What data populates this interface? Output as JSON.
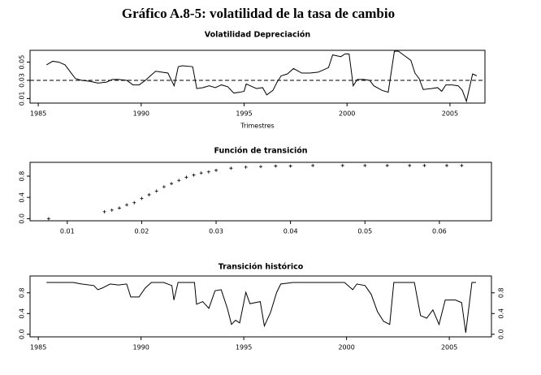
{
  "title": "Gráfico A.8-5: volatilidad de la tasa de cambio",
  "chart_data": [
    {
      "type": "line",
      "title": "Volatilidad Depreciación",
      "x_label": "Trimestres",
      "x": [
        1985.4,
        1985.7,
        1986.0,
        1986.3,
        1986.6,
        1986.8,
        1987.1,
        1987.5,
        1987.9,
        1988.3,
        1988.6,
        1988.9,
        1989.3,
        1989.6,
        1989.9,
        1990.2,
        1990.5,
        1990.7,
        1991.0,
        1991.3,
        1991.6,
        1991.8,
        1992.0,
        1992.5,
        1992.7,
        1993.0,
        1993.3,
        1993.6,
        1993.9,
        1994.2,
        1994.5,
        1994.8,
        1995.0,
        1995.1,
        1995.3,
        1995.6,
        1995.9,
        1996.1,
        1996.4,
        1996.6,
        1996.8,
        1997.1,
        1997.4,
        1997.8,
        1998.2,
        1998.6,
        1998.8,
        1999.1,
        1999.3,
        1999.7,
        1999.9,
        2000.1,
        2000.3,
        2000.5,
        2000.8,
        2001.1,
        2001.3,
        2001.7,
        2002.0,
        2002.3,
        2002.5,
        2002.8,
        2003.1,
        2003.3,
        2003.5,
        2003.7,
        2004.1,
        2004.4,
        2004.6,
        2004.8,
        2005.1,
        2005.4,
        2005.6,
        2005.8,
        2006.1,
        2006.3
      ],
      "values": [
        0.047,
        0.051,
        0.05,
        0.047,
        0.038,
        0.032,
        0.03,
        0.029,
        0.027,
        0.028,
        0.031,
        0.031,
        0.03,
        0.025,
        0.025,
        0.03,
        0.036,
        0.04,
        0.039,
        0.038,
        0.024,
        0.045,
        0.046,
        0.045,
        0.021,
        0.022,
        0.024,
        0.022,
        0.025,
        0.023,
        0.016,
        0.017,
        0.018,
        0.026,
        0.024,
        0.021,
        0.022,
        0.014,
        0.019,
        0.028,
        0.035,
        0.037,
        0.043,
        0.038,
        0.038,
        0.039,
        0.041,
        0.044,
        0.058,
        0.056,
        0.059,
        0.059,
        0.024,
        0.031,
        0.031,
        0.03,
        0.024,
        0.019,
        0.017,
        0.062,
        0.062,
        0.057,
        0.052,
        0.038,
        0.032,
        0.02,
        0.021,
        0.022,
        0.018,
        0.025,
        0.025,
        0.024,
        0.019,
        0.007,
        0.037,
        0.035
      ],
      "color": "#000000",
      "reference_line": 0.03,
      "xlim": [
        1984.6,
        2006.7
      ],
      "xticks": [
        1985,
        1990,
        1995,
        2000,
        2005
      ],
      "ylim": [
        0.005,
        0.063
      ],
      "yticks": [
        0.01,
        0.03,
        0.05
      ]
    },
    {
      "type": "scatter",
      "title": "Función de transición",
      "x": [
        0.0075,
        0.015,
        0.016,
        0.017,
        0.018,
        0.019,
        0.02,
        0.021,
        0.022,
        0.023,
        0.024,
        0.025,
        0.026,
        0.027,
        0.028,
        0.029,
        0.03,
        0.032,
        0.034,
        0.036,
        0.038,
        0.04,
        0.043,
        0.047,
        0.05,
        0.053,
        0.056,
        0.058,
        0.061,
        0.063
      ],
      "values": [
        0.0,
        0.13,
        0.16,
        0.2,
        0.26,
        0.3,
        0.38,
        0.45,
        0.52,
        0.6,
        0.66,
        0.72,
        0.78,
        0.82,
        0.86,
        0.88,
        0.91,
        0.95,
        0.97,
        0.98,
        0.99,
        0.99,
        1.0,
        1.0,
        1.0,
        1.0,
        1.0,
        1.0,
        1.0,
        1.0
      ],
      "color": "#000000",
      "xlim": [
        0.005,
        0.067
      ],
      "xticks": [
        0.01,
        0.02,
        0.03,
        0.04,
        0.05,
        0.06
      ],
      "ylim": [
        -0.04,
        1.06
      ],
      "yticks": [
        {
          "value": 0,
          "label": "0.0"
        },
        0.4,
        0.8
      ]
    },
    {
      "type": "line",
      "title": "Transición histórico",
      "right_axis": true,
      "x": [
        1985.4,
        1986.7,
        1987.1,
        1987.7,
        1987.9,
        1988.1,
        1988.5,
        1988.9,
        1989.3,
        1989.5,
        1989.9,
        1990.2,
        1990.5,
        1991.1,
        1991.5,
        1991.6,
        1991.8,
        1992.6,
        1992.7,
        1993.0,
        1993.3,
        1993.6,
        1993.9,
        1994.2,
        1994.4,
        1994.6,
        1994.8,
        1995.1,
        1995.3,
        1995.8,
        1996.0,
        1996.3,
        1996.6,
        1996.8,
        1997.4,
        1999.9,
        2000.3,
        2000.5,
        2000.9,
        2001.2,
        2001.5,
        2001.8,
        2002.1,
        2002.3,
        2003.3,
        2003.6,
        2003.9,
        2004.2,
        2004.5,
        2004.8,
        2005.3,
        2005.6,
        2005.8,
        2006.1,
        2006.3
      ],
      "values": [
        1.0,
        1.0,
        0.97,
        0.94,
        0.86,
        0.89,
        0.97,
        0.95,
        0.97,
        0.72,
        0.72,
        0.89,
        1.0,
        1.0,
        0.94,
        0.66,
        1.0,
        1.0,
        0.58,
        0.63,
        0.5,
        0.84,
        0.86,
        0.5,
        0.19,
        0.27,
        0.22,
        0.81,
        0.59,
        0.63,
        0.16,
        0.42,
        0.81,
        0.97,
        1.0,
        1.0,
        0.86,
        0.97,
        0.94,
        0.77,
        0.44,
        0.25,
        0.19,
        1.0,
        1.0,
        0.36,
        0.31,
        0.47,
        0.19,
        0.66,
        0.66,
        0.61,
        0.03,
        1.0,
        1.0
      ],
      "color": "#000000",
      "xlim": [
        1984.6,
        2007.05
      ],
      "xticks": [
        1985,
        1990,
        1995,
        2000,
        2005
      ],
      "ylim": [
        -0.05,
        1.125
      ],
      "yticks": [
        {
          "value": 0,
          "label": "0.0"
        },
        0.4,
        0.8
      ]
    }
  ]
}
